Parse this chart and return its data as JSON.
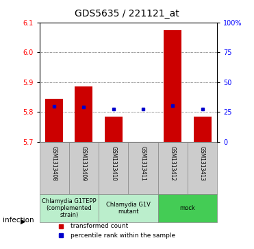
{
  "title": "GDS5635 / 221121_at",
  "samples": [
    "GSM1313408",
    "GSM1313409",
    "GSM1313410",
    "GSM1313411",
    "GSM1313412",
    "GSM1313413"
  ],
  "bar_values": [
    5.845,
    5.885,
    5.785,
    5.7,
    6.075,
    5.785
  ],
  "bar_bottom": 5.7,
  "percentile_values": [
    30.0,
    29.0,
    27.5,
    27.5,
    30.5,
    27.5
  ],
  "ylim_left": [
    5.7,
    6.1
  ],
  "ylim_right": [
    0,
    100
  ],
  "yticks_left": [
    5.7,
    5.8,
    5.9,
    6.0,
    6.1
  ],
  "yticks_right": [
    0,
    25,
    50,
    75,
    100
  ],
  "ytick_right_labels": [
    "0",
    "25",
    "50",
    "75",
    "100%"
  ],
  "bar_color": "#cc0000",
  "dot_color": "#0000cc",
  "bar_width": 0.6,
  "groups": [
    {
      "label": "Chlamydia G1TEPP\n(complemented\nstrain)",
      "cols": [
        0,
        1
      ],
      "color": "#bbeecc"
    },
    {
      "label": "Chlamydia G1V\nmutant",
      "cols": [
        2,
        3
      ],
      "color": "#bbeecc"
    },
    {
      "label": "mock",
      "cols": [
        4,
        5
      ],
      "color": "#44cc55"
    }
  ],
  "infection_label": "infection",
  "legend_items": [
    {
      "color": "#cc0000",
      "label": "transformed count"
    },
    {
      "color": "#0000cc",
      "label": "percentile rank within the sample"
    }
  ],
  "title_fontsize": 10,
  "tick_fontsize": 7,
  "sample_fontsize": 5.5,
  "group_fontsize": 6,
  "legend_fontsize": 6.5,
  "sample_box_color": "#cccccc",
  "sample_box_edge": "#888888"
}
